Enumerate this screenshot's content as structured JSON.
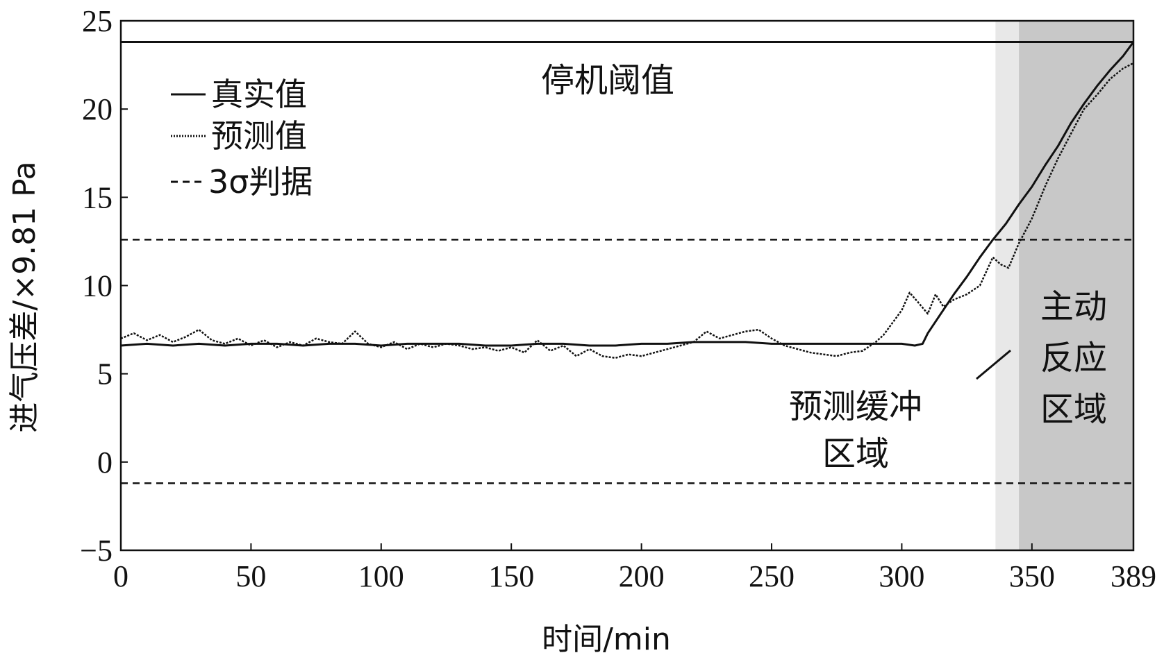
{
  "chart_data": {
    "type": "line",
    "xlabel": "时间/min",
    "ylabel": "进气压差/×9.81 Pa",
    "xlim": [
      0,
      389
    ],
    "ylim": [
      -5,
      25
    ],
    "x_ticks": [
      0,
      50,
      100,
      150,
      200,
      250,
      300,
      350,
      389
    ],
    "y_ticks": [
      -5,
      0,
      5,
      10,
      15,
      20,
      25
    ],
    "grid": false,
    "legend_position": "top-left",
    "colors": {
      "line": "#111111",
      "buffer_region": "#e8e8e8",
      "active_region": "#c8c8c8"
    },
    "threshold": {
      "label": "停机阈值",
      "y": 23.8
    },
    "sigma_bounds": {
      "upper": 12.6,
      "lower": -1.2
    },
    "regions": [
      {
        "label_lines": [
          "预测缓冲",
          "区域"
        ],
        "x_start": 336,
        "x_end": 345,
        "color": "#e8e8e8"
      },
      {
        "label_lines": [
          "主动",
          "反应",
          "区域"
        ],
        "x_start": 345,
        "x_end": 389,
        "color": "#c8c8c8"
      }
    ],
    "legend": [
      "真实值",
      "预测值",
      "3σ判据"
    ],
    "series": [
      {
        "name": "真实值",
        "style": "solid",
        "x": [
          0,
          10,
          20,
          30,
          40,
          50,
          60,
          70,
          80,
          90,
          100,
          110,
          120,
          130,
          140,
          150,
          160,
          170,
          180,
          190,
          200,
          210,
          220,
          230,
          240,
          250,
          260,
          270,
          280,
          290,
          300,
          305,
          308,
          310,
          315,
          320,
          325,
          330,
          335,
          340,
          345,
          350,
          355,
          360,
          365,
          370,
          375,
          380,
          385,
          389
        ],
        "y": [
          6.6,
          6.7,
          6.6,
          6.7,
          6.6,
          6.7,
          6.7,
          6.6,
          6.7,
          6.7,
          6.6,
          6.7,
          6.7,
          6.7,
          6.6,
          6.6,
          6.7,
          6.7,
          6.6,
          6.6,
          6.7,
          6.7,
          6.8,
          6.8,
          6.8,
          6.7,
          6.7,
          6.7,
          6.7,
          6.7,
          6.7,
          6.6,
          6.7,
          7.3,
          8.4,
          9.5,
          10.5,
          11.6,
          12.6,
          13.5,
          14.6,
          15.6,
          16.8,
          17.9,
          19.2,
          20.3,
          21.3,
          22.2,
          23.0,
          23.8
        ]
      },
      {
        "name": "预测值",
        "style": "dotted",
        "x": [
          0,
          5,
          10,
          15,
          20,
          25,
          30,
          35,
          40,
          45,
          50,
          55,
          60,
          65,
          70,
          75,
          80,
          85,
          90,
          95,
          100,
          105,
          110,
          115,
          120,
          125,
          130,
          135,
          140,
          145,
          150,
          155,
          160,
          165,
          170,
          175,
          180,
          185,
          190,
          195,
          200,
          205,
          210,
          215,
          220,
          225,
          230,
          235,
          240,
          245,
          250,
          255,
          260,
          265,
          270,
          275,
          280,
          285,
          290,
          293,
          296,
          300,
          303,
          306,
          310,
          313,
          316,
          320,
          325,
          330,
          335,
          338,
          341,
          345,
          350,
          355,
          360,
          365,
          370,
          375,
          380,
          385,
          389
        ],
        "y": [
          7.0,
          7.3,
          6.9,
          7.2,
          6.8,
          7.1,
          7.5,
          6.9,
          6.7,
          7.0,
          6.6,
          6.9,
          6.5,
          6.8,
          6.6,
          7.0,
          6.8,
          6.7,
          7.4,
          6.7,
          6.5,
          6.8,
          6.4,
          6.7,
          6.5,
          6.7,
          6.6,
          6.4,
          6.5,
          6.3,
          6.5,
          6.2,
          6.9,
          6.3,
          6.6,
          6.0,
          6.4,
          6.0,
          5.9,
          6.1,
          6.0,
          6.2,
          6.4,
          6.6,
          6.8,
          7.4,
          7.0,
          7.2,
          7.4,
          7.5,
          7.0,
          6.6,
          6.4,
          6.2,
          6.1,
          6.0,
          6.2,
          6.3,
          6.8,
          7.2,
          7.8,
          8.6,
          9.6,
          9.1,
          8.4,
          9.5,
          8.8,
          9.2,
          9.5,
          10.0,
          11.6,
          11.2,
          11.0,
          12.4,
          13.8,
          15.6,
          17.2,
          18.6,
          20.0,
          20.8,
          21.7,
          22.3,
          22.6
        ]
      }
    ]
  }
}
